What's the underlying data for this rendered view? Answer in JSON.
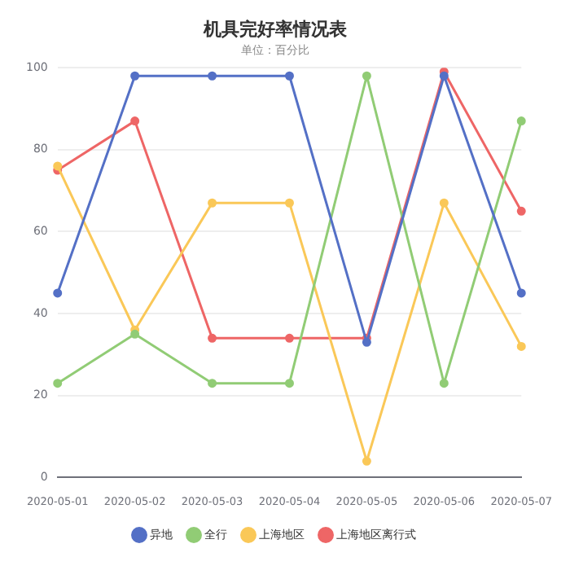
{
  "chart_data": {
    "type": "line",
    "title": "机具完好率情况表",
    "subtitle": "单位：百分比",
    "categories": [
      "2020-05-01",
      "2020-05-02",
      "2020-05-03",
      "2020-05-04",
      "2020-05-05",
      "2020-05-06",
      "2020-05-07"
    ],
    "series": [
      {
        "name": "异地",
        "color": "#5470c6",
        "values": [
          45,
          98,
          98,
          98,
          33,
          98,
          45
        ]
      },
      {
        "name": "全行",
        "color": "#91cc75",
        "values": [
          23,
          35,
          23,
          23,
          98,
          23,
          87
        ]
      },
      {
        "name": "上海地区",
        "color": "#fac858",
        "values": [
          76,
          36,
          67,
          67,
          4,
          67,
          32
        ]
      },
      {
        "name": "上海地区离行式",
        "color": "#ee6666",
        "values": [
          75,
          87,
          34,
          34,
          34,
          99,
          65
        ]
      }
    ],
    "ylim": [
      0,
      100
    ],
    "yticks": [
      0,
      20,
      40,
      60,
      80,
      100
    ],
    "grid": "y",
    "legend": "bottom",
    "marker": "circle",
    "line_style": "solid"
  }
}
